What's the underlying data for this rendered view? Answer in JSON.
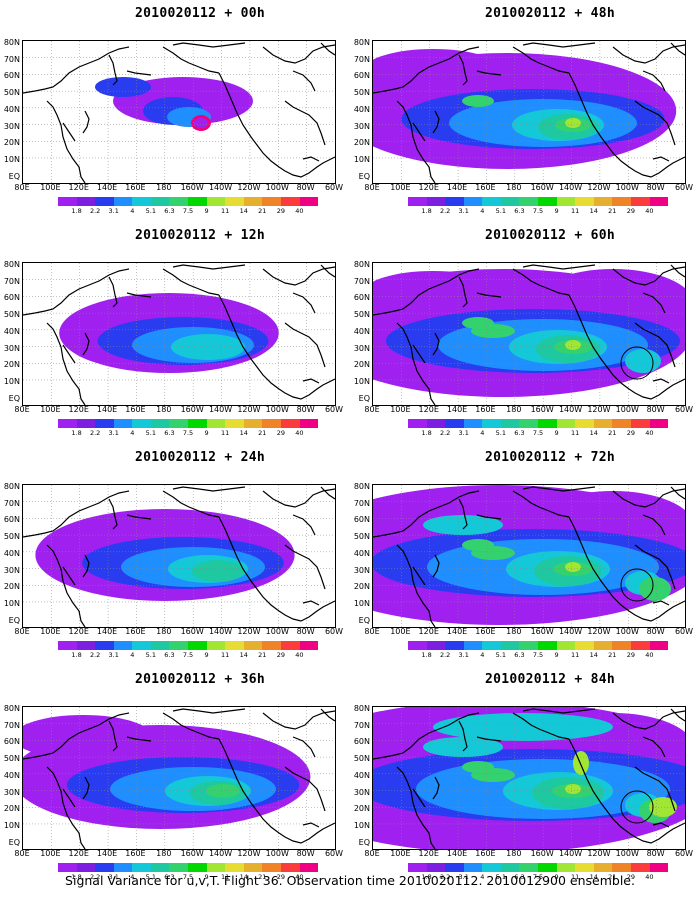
{
  "panels": [
    {
      "title": "2010020112 + 00h",
      "level": 0
    },
    {
      "title": "2010020112 + 48h",
      "level": 4
    },
    {
      "title": "2010020112 + 12h",
      "level": 1
    },
    {
      "title": "2010020112 + 60h",
      "level": 5
    },
    {
      "title": "2010020112 + 24h",
      "level": 2
    },
    {
      "title": "2010020112 + 72h",
      "level": 6
    },
    {
      "title": "2010020112 + 36h",
      "level": 3
    },
    {
      "title": "2010020112 + 84h",
      "level": 7
    }
  ],
  "lat_labels": [
    "80N",
    "70N",
    "60N",
    "50N",
    "40N",
    "30N",
    "20N",
    "10N",
    "EQ"
  ],
  "lon_labels": [
    "80E",
    "100E",
    "120E",
    "140E",
    "160E",
    "180",
    "160W",
    "140W",
    "120W",
    "100W",
    "80W",
    "60W"
  ],
  "colorbar": {
    "colors": [
      "#a020f0",
      "#7d1fe0",
      "#2a3cf0",
      "#1f8fff",
      "#14c8d8",
      "#1ec8a0",
      "#34d26e",
      "#00d800",
      "#a0e632",
      "#e6dc32",
      "#e6af2d",
      "#f08228",
      "#fa3c3c",
      "#f00082"
    ],
    "labels": [
      "1.8",
      "2.2",
      "3.1",
      "4",
      "5.1",
      "6.3",
      "7.5",
      "9",
      "11",
      "14",
      "21",
      "29",
      "40"
    ]
  },
  "footer": "Signal Variance for u,v,T. Flight 36. Observation time 2010020112. 2010012900 ensemble."
}
